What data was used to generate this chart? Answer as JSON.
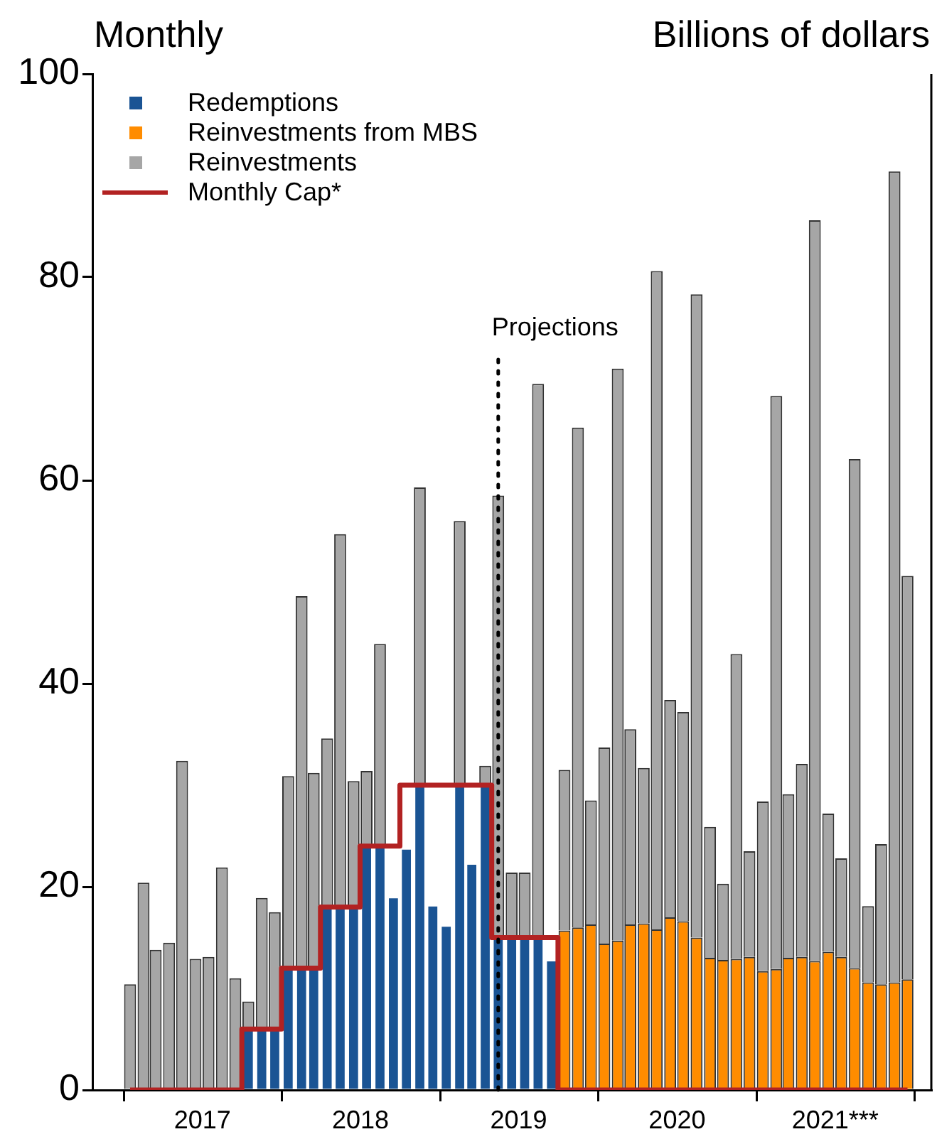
{
  "chart_data": {
    "type": "bar",
    "subtitle": "Monthly",
    "ylabel": "Billions of dollars",
    "stacked": true,
    "x": [
      "2017-01-15",
      "2017-02-15",
      "2017-03-15",
      "2017-04-15",
      "2017-05-15",
      "2017-06-15",
      "2017-07-15",
      "2017-08-15",
      "2017-09-15",
      "2017-10-15",
      "2017-11-15",
      "2017-12-15",
      "2018-01-15",
      "2018-02-15",
      "2018-03-15",
      "2018-04-15",
      "2018-05-15",
      "2018-06-15",
      "2018-07-15",
      "2018-08-15",
      "2018-09-15",
      "2018-10-15",
      "2018-11-15",
      "2018-12-15",
      "2019-01-15",
      "2019-02-15",
      "2019-03-15",
      "2019-04-15",
      "2019-05-15",
      "2019-06-15",
      "2019-07-15",
      "2019-08-15",
      "2019-09-15",
      "2019-10-15",
      "2019-11-15",
      "2019-12-15",
      "2020-01-15",
      "2020-02-15",
      "2020-03-15",
      "2020-04-15",
      "2020-05-15",
      "2020-06-15",
      "2020-07-15",
      "2020-08-15",
      "2020-09-15",
      "2020-10-15",
      "2020-11-15",
      "2020-12-15",
      "2021-01-15",
      "2021-02-15",
      "2021-03-15",
      "2021-04-15",
      "2021-05-15",
      "2021-06-15",
      "2021-07-15",
      "2021-08-15",
      "2021-09-15",
      "2021-10-15",
      "2021-11-15",
      "2021-12-15"
    ],
    "series": [
      {
        "name": "Redemptions",
        "color": "#1a5494",
        "values": [
          null,
          null,
          null,
          null,
          null,
          null,
          null,
          null,
          null,
          6,
          6,
          6,
          12,
          12,
          12,
          18,
          18,
          18,
          24,
          24,
          19,
          23.8,
          30,
          18.2,
          16.2,
          30,
          22.3,
          30,
          15,
          15,
          15,
          15,
          12.8,
          null,
          null,
          null,
          null,
          null,
          null,
          null,
          null,
          null,
          null,
          null,
          null,
          null,
          null,
          null,
          null,
          null,
          null,
          null,
          null,
          null,
          null,
          null,
          null,
          null,
          null,
          null
        ]
      },
      {
        "name": "Reinvestments from MBS",
        "color": "#ff8c00",
        "values": [
          null,
          null,
          null,
          null,
          null,
          null,
          null,
          null,
          null,
          null,
          null,
          null,
          null,
          null,
          null,
          null,
          null,
          null,
          null,
          null,
          null,
          null,
          null,
          null,
          null,
          null,
          null,
          null,
          null,
          null,
          null,
          null,
          null,
          15.7,
          16.0,
          16.3,
          14.4,
          14.7,
          16.3,
          16.4,
          15.8,
          17.0,
          16.6,
          15.0,
          13.0,
          12.8,
          12.9,
          13.1,
          11.7,
          11.9,
          13.0,
          13.1,
          12.7,
          13.6,
          13.1,
          12.0,
          10.6,
          10.4,
          10.6,
          10.9
        ]
      },
      {
        "name": "Reinvestments",
        "color": "#a6a6a6",
        "values": [
          10.4,
          20.4,
          13.8,
          14.5,
          32.4,
          12.9,
          13.1,
          21.9,
          11.0,
          2.7,
          12.9,
          11.5,
          18.9,
          36.6,
          19.2,
          16.6,
          36.7,
          12.4,
          7.4,
          19.9,
          null,
          null,
          29.3,
          null,
          null,
          26.0,
          null,
          1.9,
          43.5,
          6.4,
          6.4,
          54.5,
          null,
          15.8,
          49.2,
          12.2,
          19.3,
          56.3,
          19.2,
          15.3,
          64.8,
          21.4,
          20.6,
          63.3,
          12.9,
          7.5,
          30.0,
          10.4,
          16.7,
          56.4,
          16.1,
          19.0,
          72.9,
          13.6,
          9.7,
          50.1,
          7.5,
          13.8,
          79.8,
          39.7
        ]
      },
      {
        "name": "Monthly Cap*",
        "type": "step",
        "color": "#b22222",
        "values": [
          0,
          0,
          0,
          0,
          0,
          0,
          0,
          0,
          0,
          6,
          6,
          6,
          12,
          12,
          12,
          18,
          18,
          18,
          24,
          24,
          24,
          30,
          30,
          30,
          30,
          30,
          30,
          30,
          15,
          15,
          15,
          15,
          15,
          0,
          0,
          0,
          0,
          0,
          0,
          0,
          0,
          0,
          0,
          0,
          0,
          0,
          0,
          0,
          0,
          0,
          0,
          0,
          0,
          0,
          0,
          0,
          0,
          0,
          0,
          0
        ]
      }
    ],
    "xlim": [
      "2016-10-20",
      "2022-02-08"
    ],
    "xticks": [
      {
        "value": "2017-01-01",
        "label": null
      },
      {
        "value": "2017-07-01",
        "label": "2017"
      },
      {
        "value": "2018-01-01",
        "label": null
      },
      {
        "value": "2018-07-01",
        "label": "2018"
      },
      {
        "value": "2019-01-01",
        "label": null
      },
      {
        "value": "2019-07-01",
        "label": "2019"
      },
      {
        "value": "2020-01-01",
        "label": null
      },
      {
        "value": "2020-07-01",
        "label": "2020"
      },
      {
        "value": "2021-01-01",
        "label": null
      },
      {
        "value": "2021-07-01",
        "label": "2021***"
      },
      {
        "value": "2022-01-01",
        "label": null
      }
    ],
    "ylim": [
      0,
      100
    ],
    "yticks": [
      0,
      20,
      40,
      60,
      80,
      100
    ],
    "ref_lines": [
      {
        "axis": "x",
        "value": "2019-05-15",
        "label": "Projections",
        "color": "#000000",
        "line_style": "dotted"
      }
    ],
    "legend": "top left"
  }
}
